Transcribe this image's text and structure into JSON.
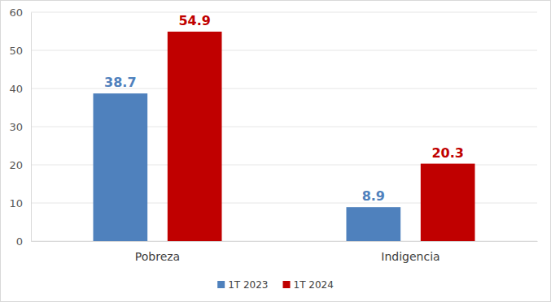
{
  "chart_data": {
    "type": "bar",
    "categories": [
      "Pobreza",
      "Indigencia"
    ],
    "series": [
      {
        "name": "1T 2023",
        "color": "#4f81bd",
        "values": [
          38.7,
          8.9
        ]
      },
      {
        "name": "1T 2024",
        "color": "#c00000",
        "values": [
          54.9,
          20.3
        ]
      }
    ],
    "ylim": [
      0,
      60
    ],
    "yticks": [
      0,
      10,
      20,
      30,
      40,
      50,
      60
    ],
    "grid": true,
    "legend": "bottom",
    "data_labels": true
  }
}
